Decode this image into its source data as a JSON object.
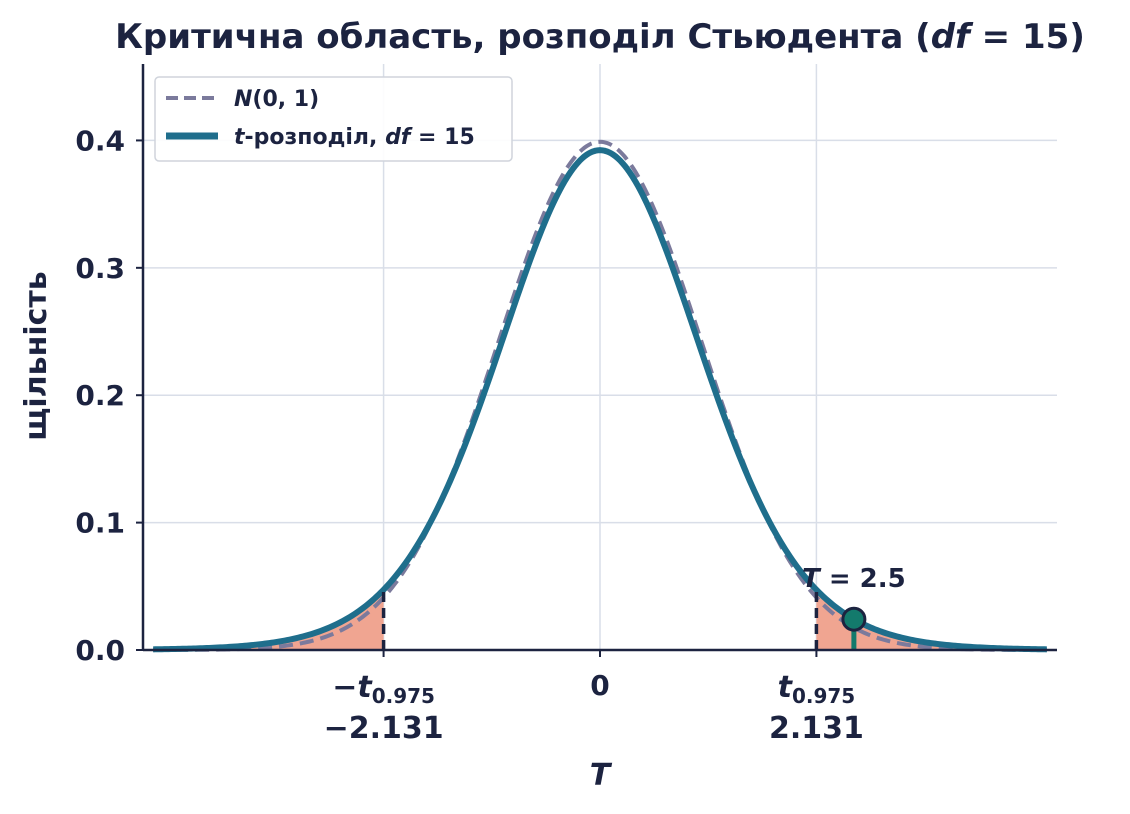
{
  "chart_data": {
    "type": "line",
    "title": "Критична область, розподіл Стьюдента (df = 15)",
    "title_main": "Критична область, розподіл Стьюдента (",
    "title_df": "df",
    "title_eq": " = 15)",
    "xlabel": "T",
    "ylabel": "щільність",
    "xlim": [
      -4.5,
      4.5
    ],
    "ylim": [
      0,
      0.46
    ],
    "x_range": [
      -4.4,
      4.4
    ],
    "yticks": [
      0.0,
      0.1,
      0.2,
      0.3,
      0.4
    ],
    "ytick_labels": [
      "0.0",
      "0.1",
      "0.2",
      "0.3",
      "0.4"
    ],
    "grid": true,
    "legend_placement": "top-left",
    "df": 15,
    "series": [
      {
        "name": "N(0, 1)",
        "distribution": "normal",
        "style": "dashed",
        "color": "#7b7a9c"
      },
      {
        "name": "t-розподіл, df = 15",
        "distribution": "student_t",
        "df": 15,
        "style": "solid",
        "color": "#1f6e8c"
      }
    ],
    "legend": {
      "normal_n": "N",
      "normal_args": "(0, 1)",
      "t_name": "t",
      "t_rest": "-розподіл, ",
      "t_df": "df",
      "t_eq": " = 15"
    },
    "critical": {
      "value": 2.131,
      "lower_label": "−2.131",
      "upper_label": "2.131",
      "lower_symbol": "−t",
      "upper_symbol": "t",
      "subscript": "0.975",
      "fill_color": "#f0a591",
      "line_color": "#1c2340"
    },
    "center_tick": "0",
    "observed": {
      "value": 2.5,
      "label_var": "T",
      "label_rest": " = 2.5",
      "marker_color": "#137a6c"
    },
    "colors": {
      "axis": "#1c2340",
      "grid": "#d9dee8",
      "text": "#1c2340"
    }
  }
}
